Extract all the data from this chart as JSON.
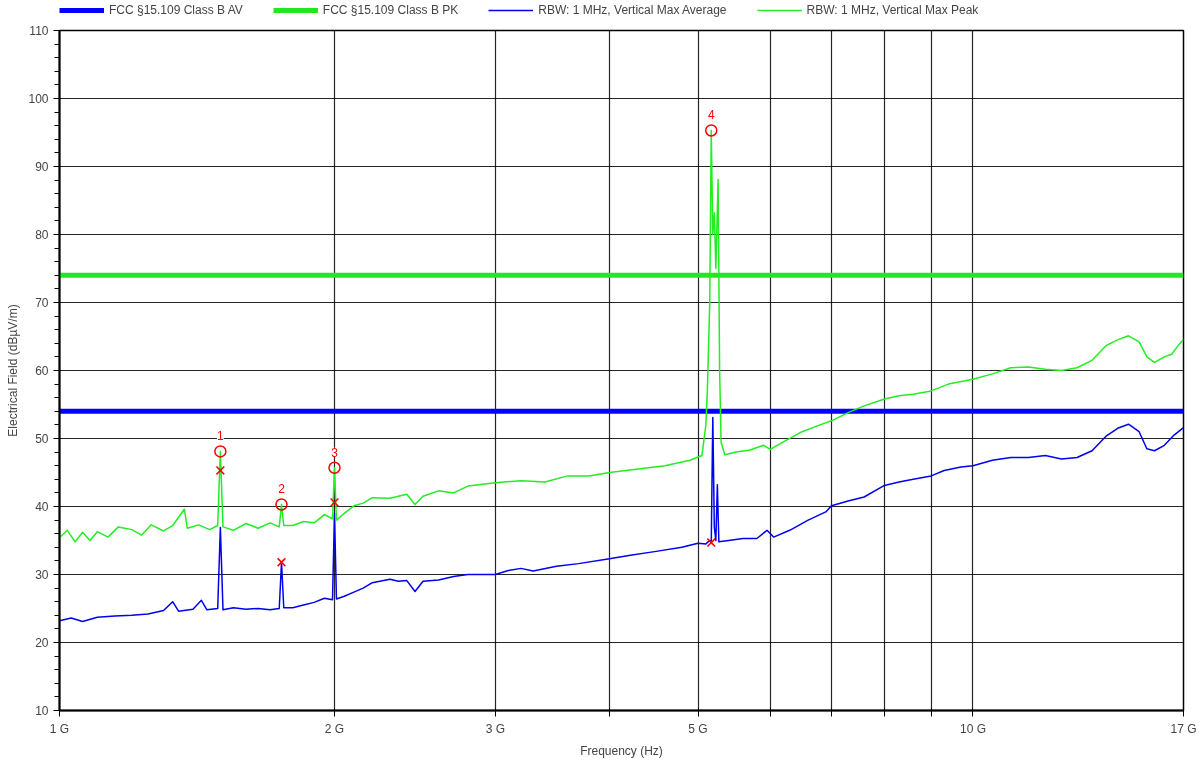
{
  "chart_data": {
    "type": "line",
    "xlabel": "Frequency (Hz)",
    "ylabel": "Electrical Field (dBµV/m)",
    "log": "x",
    "grid": true,
    "legend": "top",
    "xlim": [
      1,
      17
    ],
    "ylim": [
      10,
      110
    ],
    "xticks": [
      {
        "value": 1,
        "label": "1 G"
      },
      {
        "value": 2,
        "label": "2 G"
      },
      {
        "value": 3,
        "label": "3 G"
      },
      {
        "value": 4,
        "label": null
      },
      {
        "value": 5,
        "label": "5 G"
      },
      {
        "value": 6,
        "label": null
      },
      {
        "value": 7,
        "label": null
      },
      {
        "value": 8,
        "label": null
      },
      {
        "value": 9,
        "label": null
      },
      {
        "value": 10,
        "label": "10 G"
      },
      {
        "value": 17,
        "label": "17 G"
      }
    ],
    "yticks": [
      10,
      20,
      30,
      40,
      50,
      60,
      70,
      80,
      90,
      100,
      110
    ],
    "ref_lines": [
      {
        "axis": "y",
        "value": 54,
        "label": "FCC §15.109 Class B AV",
        "color": "#0000ff"
      },
      {
        "axis": "y",
        "value": 74,
        "label": "FCC §15.109 Class B PK",
        "color": "#22e822"
      }
    ],
    "series": [
      {
        "name": "RBW: 1 MHz, Vertical Max Average",
        "color": "#0000ee",
        "x": [
          1.0,
          1.03,
          1.06,
          1.1,
          1.15,
          1.2,
          1.25,
          1.3,
          1.33,
          1.35,
          1.4,
          1.43,
          1.45,
          1.49,
          1.5,
          1.51,
          1.55,
          1.6,
          1.65,
          1.7,
          1.74,
          1.75,
          1.76,
          1.8,
          1.85,
          1.9,
          1.95,
          1.99,
          2.0,
          2.01,
          2.05,
          2.1,
          2.15,
          2.2,
          2.3,
          2.35,
          2.4,
          2.45,
          2.5,
          2.6,
          2.7,
          2.8,
          3.0,
          3.1,
          3.2,
          3.3,
          3.5,
          3.7,
          4.0,
          4.2,
          4.5,
          4.8,
          5.0,
          5.1,
          5.15,
          5.17,
          5.19,
          5.21,
          5.23,
          5.25,
          5.27,
          5.4,
          5.6,
          5.8,
          5.95,
          6.05,
          6.3,
          6.6,
          6.9,
          7.0,
          7.3,
          7.6,
          8.0,
          8.3,
          8.6,
          9.0,
          9.3,
          9.7,
          10.0,
          10.5,
          11.0,
          11.5,
          12.0,
          12.5,
          13.0,
          13.5,
          14.0,
          14.4,
          14.8,
          15.2,
          15.5,
          15.8,
          16.2,
          16.6,
          17.0
        ],
        "values": [
          23.2,
          23.6,
          23.1,
          23.7,
          23.9,
          24.0,
          24.2,
          24.7,
          26.0,
          24.6,
          24.9,
          26.2,
          24.8,
          25.0,
          36.9,
          24.8,
          25.1,
          24.9,
          25.0,
          24.8,
          25.0,
          31.8,
          25.1,
          25.1,
          25.5,
          25.9,
          26.5,
          26.3,
          39.0,
          26.4,
          26.8,
          27.4,
          28.0,
          28.8,
          29.3,
          29.0,
          29.1,
          27.5,
          29.0,
          29.2,
          29.7,
          30.0,
          30.0,
          30.6,
          30.9,
          30.5,
          31.2,
          31.6,
          32.3,
          32.8,
          33.4,
          34.0,
          34.6,
          34.5,
          35.0,
          34.7,
          53.1,
          37.0,
          35.0,
          43.2,
          34.8,
          35.0,
          35.3,
          35.3,
          36.5,
          35.5,
          36.5,
          38.0,
          39.2,
          40.1,
          40.8,
          41.4,
          43.1,
          43.6,
          44.0,
          44.5,
          45.3,
          45.8,
          46.0,
          46.8,
          47.2,
          47.2,
          47.5,
          47.0,
          47.2,
          48.2,
          50.4,
          51.5,
          52.1,
          51.0,
          48.5,
          48.2,
          49.0,
          50.5,
          51.6
        ]
      },
      {
        "name": "RBW: 1 MHz, Vertical Max Peak",
        "color": "#22ee22",
        "x": [
          1.0,
          1.02,
          1.04,
          1.06,
          1.08,
          1.1,
          1.13,
          1.16,
          1.2,
          1.23,
          1.26,
          1.3,
          1.33,
          1.37,
          1.38,
          1.42,
          1.46,
          1.49,
          1.5,
          1.51,
          1.55,
          1.6,
          1.65,
          1.7,
          1.74,
          1.75,
          1.76,
          1.8,
          1.85,
          1.9,
          1.95,
          1.99,
          2.0,
          2.01,
          2.05,
          2.1,
          2.15,
          2.2,
          2.3,
          2.4,
          2.45,
          2.5,
          2.6,
          2.7,
          2.8,
          3.0,
          3.2,
          3.4,
          3.6,
          3.8,
          4.0,
          4.3,
          4.6,
          4.9,
          5.05,
          5.1,
          5.12,
          5.15,
          5.17,
          5.19,
          5.21,
          5.23,
          5.26,
          5.28,
          5.3,
          5.35,
          5.5,
          5.7,
          5.9,
          6.0,
          6.2,
          6.5,
          6.8,
          7.0,
          7.3,
          7.6,
          8.0,
          8.3,
          8.6,
          9.0,
          9.4,
          10.0,
          10.5,
          11.0,
          11.5,
          12.0,
          12.5,
          13.0,
          13.5,
          14.0,
          14.4,
          14.8,
          15.2,
          15.5,
          15.8,
          16.2,
          16.5,
          16.8,
          17.0
        ],
        "values": [
          35.4,
          36.5,
          34.8,
          36.2,
          35.0,
          36.3,
          35.5,
          37.0,
          36.6,
          35.8,
          37.3,
          36.4,
          37.2,
          39.6,
          36.8,
          37.3,
          36.6,
          37.2,
          48.1,
          37.0,
          36.5,
          37.5,
          36.8,
          37.6,
          37.0,
          40.3,
          37.2,
          37.2,
          37.8,
          37.6,
          38.8,
          38.2,
          45.7,
          38.0,
          39.0,
          40.1,
          40.5,
          41.3,
          41.2,
          41.8,
          40.3,
          41.5,
          42.3,
          42.0,
          43.0,
          43.5,
          43.8,
          43.6,
          44.5,
          44.5,
          45.0,
          45.5,
          46.0,
          46.8,
          47.5,
          52.0,
          57.2,
          70.0,
          95.3,
          80.0,
          83.2,
          75.0,
          88.1,
          60.0,
          49.4,
          47.6,
          48.0,
          48.3,
          49.0,
          48.4,
          49.5,
          51.0,
          52.0,
          52.6,
          53.8,
          54.8,
          55.8,
          56.3,
          56.5,
          57.0,
          58.0,
          58.7,
          59.5,
          60.4,
          60.5,
          60.2,
          60.0,
          60.4,
          61.5,
          63.7,
          64.5,
          65.1,
          64.2,
          62.0,
          61.2,
          62.0,
          62.4,
          63.8,
          64.6
        ]
      },
      {
        "color": "#ff0000",
        "type": "scatter",
        "marker": "circle",
        "x": [
          1.5,
          1.75,
          2.0,
          5.17
        ],
        "values": [
          48.1,
          40.3,
          45.7,
          95.3
        ]
      },
      {
        "color": "#ff0000",
        "type": "scatter",
        "marker": "cross",
        "x": [
          1.5,
          1.75,
          2.0,
          5.17
        ],
        "values": [
          45.3,
          31.8,
          40.6,
          34.7
        ]
      }
    ],
    "annotations": [
      {
        "text": "1",
        "x": 1.5,
        "y": 48.1
      },
      {
        "text": "2",
        "x": 1.75,
        "y": 40.3
      },
      {
        "text": "3",
        "x": 2.0,
        "y": 45.7
      },
      {
        "text": "4",
        "x": 5.17,
        "y": 95.3
      }
    ]
  }
}
